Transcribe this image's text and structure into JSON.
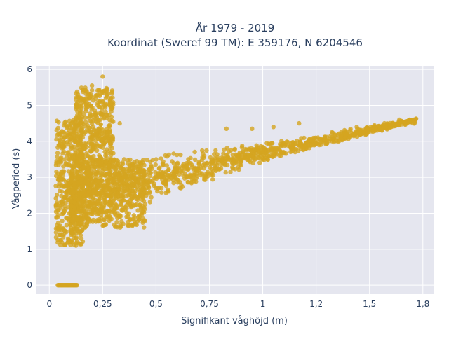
{
  "chart_data": {
    "type": "scatter",
    "title_line1": "År 1979 - 2019",
    "title_line2": "Koordinat (Sweref 99 TM): E 359176, N 6204546",
    "xlabel": "Signifikant våghöjd (m)",
    "ylabel": "Vågperiod (s)",
    "xlim": [
      -0.06,
      1.8
    ],
    "ylim": [
      -0.25,
      6.1
    ],
    "x_ticks": [
      0,
      0.25,
      0.5,
      0.75,
      1,
      1.25,
      1.5,
      1.75
    ],
    "x_tick_labels": [
      "0",
      "0,25",
      "0,5",
      "0,75",
      "1",
      "1,2",
      "1,5",
      "1,8"
    ],
    "y_ticks": [
      0,
      1,
      2,
      3,
      4,
      5,
      6
    ],
    "y_tick_labels": [
      "0",
      "1",
      "2",
      "3",
      "4",
      "5",
      "6"
    ],
    "grid": true,
    "marker_color": "#d4a520",
    "plot_bg": "#e5e6ef",
    "dense_regions": [
      {
        "x_min": 0.03,
        "x_max": 0.16,
        "y_min": 1.1,
        "y_max": 4.6
      },
      {
        "x_min": 0.12,
        "x_max": 0.3,
        "y_min": 3.3,
        "y_max": 5.5
      },
      {
        "x_min": 0.15,
        "x_max": 0.45,
        "y_min": 1.6,
        "y_max": 3.5
      }
    ],
    "band": {
      "x": [
        0.1,
        0.25,
        0.5,
        0.75,
        1.0,
        1.25,
        1.5,
        1.72
      ],
      "y_low": [
        1.2,
        1.7,
        2.3,
        2.9,
        3.4,
        3.8,
        4.2,
        4.5
      ],
      "y_high": [
        3.6,
        3.4,
        3.7,
        3.8,
        3.95,
        4.2,
        4.45,
        4.65
      ]
    },
    "zero_period_points": {
      "x_min": 0.04,
      "x_max": 0.13,
      "y": 0
    },
    "outliers": [
      {
        "x": 0.25,
        "y": 5.8
      },
      {
        "x": 0.2,
        "y": 5.55
      },
      {
        "x": 0.33,
        "y": 4.5
      },
      {
        "x": 0.29,
        "y": 4.15
      },
      {
        "x": 0.68,
        "y": 2.9
      },
      {
        "x": 0.83,
        "y": 4.35
      },
      {
        "x": 0.95,
        "y": 4.35
      },
      {
        "x": 1.05,
        "y": 4.4
      },
      {
        "x": 1.17,
        "y": 4.5
      },
      {
        "x": 1.44,
        "y": 4.4
      },
      {
        "x": 1.57,
        "y": 4.5
      },
      {
        "x": 1.64,
        "y": 4.6
      },
      {
        "x": 1.69,
        "y": 4.58
      }
    ]
  }
}
